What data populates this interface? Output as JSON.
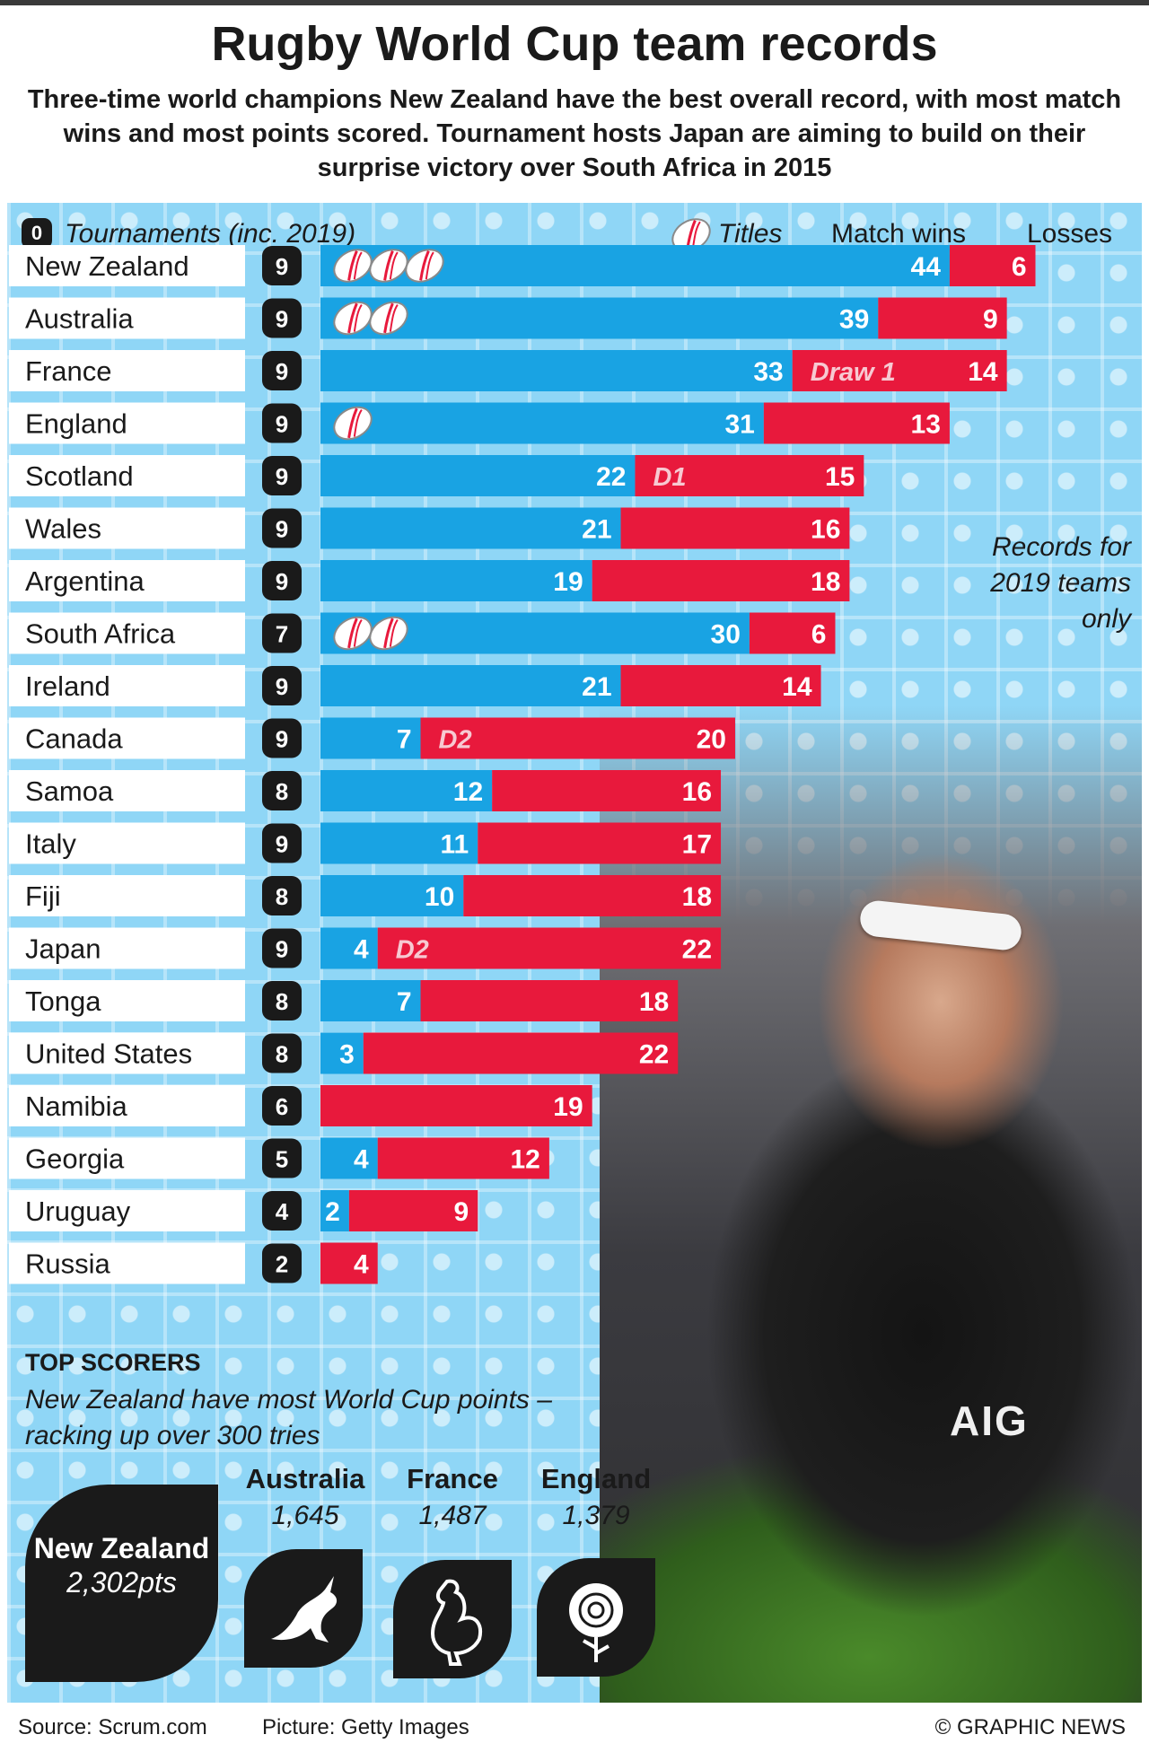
{
  "header": {
    "title": "Rugby World Cup team records",
    "subtitle": "Three-time world champions New Zealand have the best overall record, with most match wins and most points scored. Tournament hosts Japan are aiming to build on their surprise victory over South Africa in 2015"
  },
  "legend": {
    "zero": "0",
    "tournaments": "Tournaments (inc. 2019)",
    "titles": "Titles",
    "wins": "Match wins",
    "losses": "Losses"
  },
  "colors": {
    "wins": "#19a3e3",
    "losses": "#e8193c",
    "dark": "#1a1a1a",
    "panel": "#8fd6f6"
  },
  "records_note": "Records for 2019 teams only",
  "chart_data": {
    "type": "bar",
    "orientation": "horizontal",
    "stacked": true,
    "series_names": [
      "Match wins",
      "Losses"
    ],
    "rows": [
      {
        "team": "New Zealand",
        "tournaments": 9,
        "titles": 3,
        "wins": 44,
        "losses": 6,
        "draws": 0,
        "draw_label": ""
      },
      {
        "team": "Australia",
        "tournaments": 9,
        "titles": 2,
        "wins": 39,
        "losses": 9,
        "draws": 0,
        "draw_label": ""
      },
      {
        "team": "France",
        "tournaments": 9,
        "titles": 0,
        "wins": 33,
        "losses": 14,
        "draws": 1,
        "draw_label": "Draw 1"
      },
      {
        "team": "England",
        "tournaments": 9,
        "titles": 1,
        "wins": 31,
        "losses": 13,
        "draws": 0,
        "draw_label": ""
      },
      {
        "team": "Scotland",
        "tournaments": 9,
        "titles": 0,
        "wins": 22,
        "losses": 15,
        "draws": 1,
        "draw_label": "D1"
      },
      {
        "team": "Wales",
        "tournaments": 9,
        "titles": 0,
        "wins": 21,
        "losses": 16,
        "draws": 0,
        "draw_label": ""
      },
      {
        "team": "Argentina",
        "tournaments": 9,
        "titles": 0,
        "wins": 19,
        "losses": 18,
        "draws": 0,
        "draw_label": ""
      },
      {
        "team": "South Africa",
        "tournaments": 7,
        "titles": 2,
        "wins": 30,
        "losses": 6,
        "draws": 0,
        "draw_label": ""
      },
      {
        "team": "Ireland",
        "tournaments": 9,
        "titles": 0,
        "wins": 21,
        "losses": 14,
        "draws": 0,
        "draw_label": ""
      },
      {
        "team": "Canada",
        "tournaments": 9,
        "titles": 0,
        "wins": 7,
        "losses": 20,
        "draws": 2,
        "draw_label": "D2"
      },
      {
        "team": "Samoa",
        "tournaments": 8,
        "titles": 0,
        "wins": 12,
        "losses": 16,
        "draws": 0,
        "draw_label": ""
      },
      {
        "team": "Italy",
        "tournaments": 9,
        "titles": 0,
        "wins": 11,
        "losses": 17,
        "draws": 0,
        "draw_label": ""
      },
      {
        "team": "Fiji",
        "tournaments": 8,
        "titles": 0,
        "wins": 10,
        "losses": 18,
        "draws": 0,
        "draw_label": ""
      },
      {
        "team": "Japan",
        "tournaments": 9,
        "titles": 0,
        "wins": 4,
        "losses": 22,
        "draws": 2,
        "draw_label": "D2"
      },
      {
        "team": "Tonga",
        "tournaments": 8,
        "titles": 0,
        "wins": 7,
        "losses": 18,
        "draws": 0,
        "draw_label": ""
      },
      {
        "team": "United States",
        "tournaments": 8,
        "titles": 0,
        "wins": 3,
        "losses": 22,
        "draws": 0,
        "draw_label": ""
      },
      {
        "team": "Namibia",
        "tournaments": 6,
        "titles": 0,
        "wins": 0,
        "losses": 19,
        "draws": 0,
        "draw_label": ""
      },
      {
        "team": "Georgia",
        "tournaments": 5,
        "titles": 0,
        "wins": 4,
        "losses": 12,
        "draws": 0,
        "draw_label": ""
      },
      {
        "team": "Uruguay",
        "tournaments": 4,
        "titles": 0,
        "wins": 2,
        "losses": 9,
        "draws": 0,
        "draw_label": ""
      },
      {
        "team": "Russia",
        "tournaments": 2,
        "titles": 0,
        "wins": 0,
        "losses": 4,
        "draws": 0,
        "draw_label": ""
      }
    ]
  },
  "top_scorers": {
    "heading": "TOP SCORERS",
    "description": "New Zealand have most World Cup points – racking up over 300 tries",
    "leader": {
      "name": "New Zealand",
      "points": "2,302pts"
    },
    "others": [
      {
        "name": "Australia",
        "points": "1,645",
        "icon": "kangaroo-icon"
      },
      {
        "name": "France",
        "points": "1,487",
        "icon": "rooster-icon"
      },
      {
        "name": "England",
        "points": "1,379",
        "icon": "rose-icon"
      }
    ]
  },
  "footer": {
    "source": "Source: Scrum.com",
    "picture": "Picture: Getty Images",
    "credit": "© GRAPHIC NEWS"
  }
}
